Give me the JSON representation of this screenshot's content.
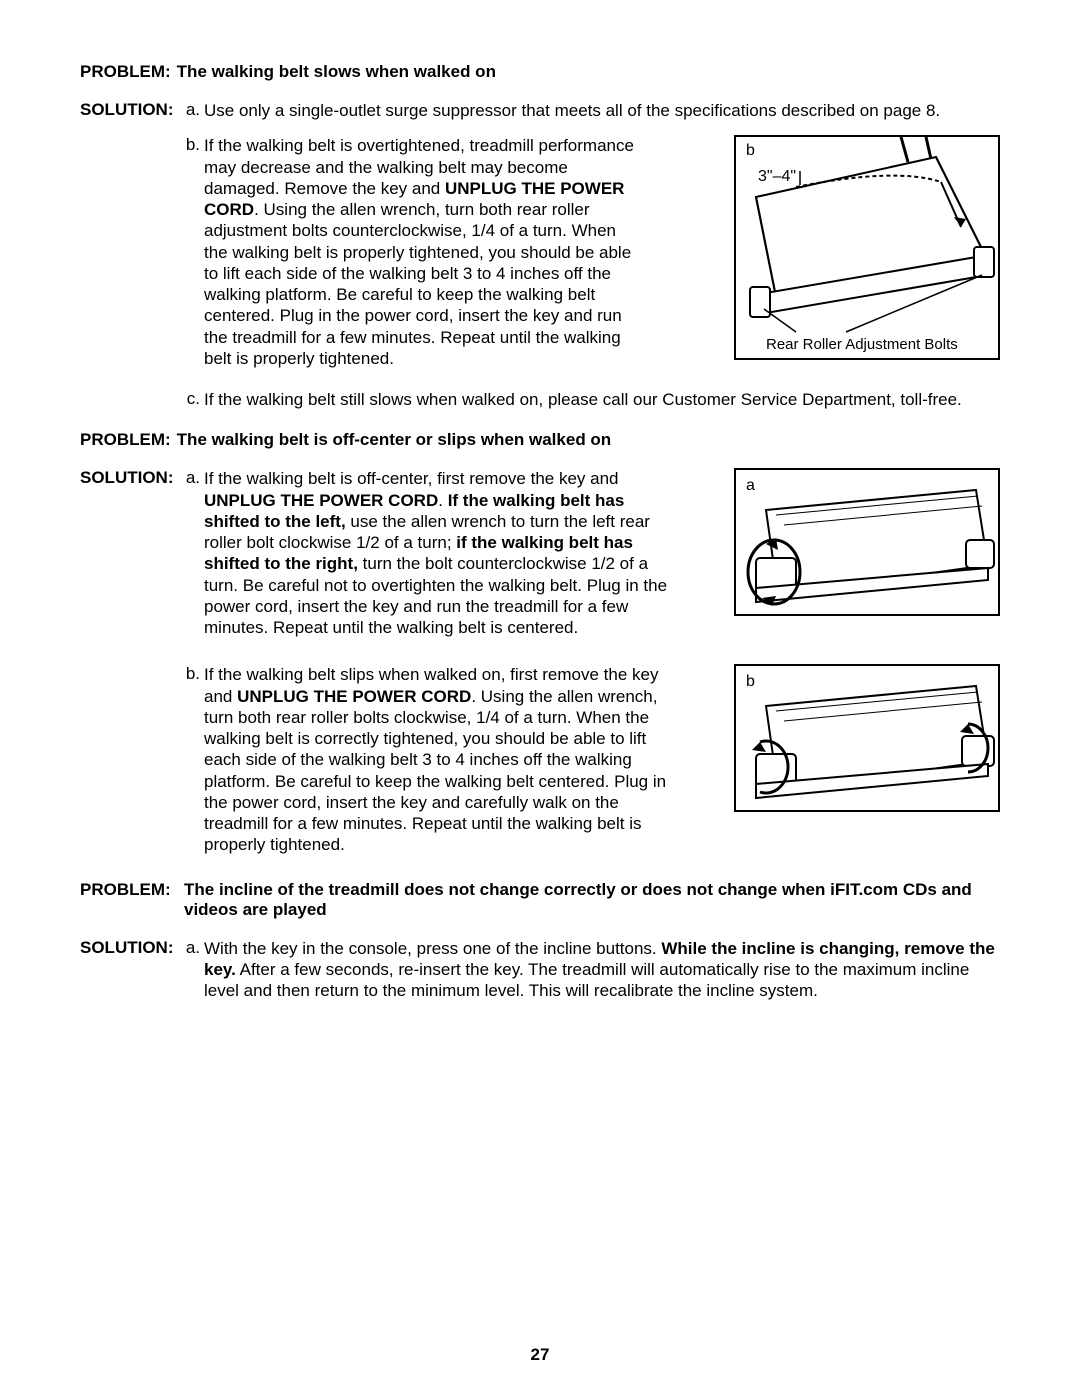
{
  "page_number": "27",
  "problems": [
    {
      "label": "PROBLEM:",
      "text": "The walking belt slows when walked on",
      "solution_label": "SOLUTION:",
      "items": [
        {
          "letter": "a.",
          "html": "Use only a single-outlet surge suppressor that meets all of the specifications described on page 8."
        },
        {
          "letter": "b.",
          "html": "If the walking belt is overtightened, treadmill performance may decrease and the walking belt may become damaged. Remove the key and <b>UNPLUG THE POWER CORD</b>. Using the allen wrench, turn both rear roller adjustment bolts counterclockwise, 1/4 of a turn. When the walking belt is properly tightened, you should be able to lift each side of the walking belt 3 to 4 inches off the walking platform. Be careful to keep the walking belt centered. Plug in the power cord, insert the key and run the treadmill for a few minutes. Repeat until the walking belt is properly tightened."
        },
        {
          "letter": "c.",
          "html": "If the walking belt still slows when walked on, please call our Customer Service Department, toll-free."
        }
      ],
      "figure": {
        "label": "b",
        "dim_label": "3\"–4\"",
        "caption": "Rear Roller Adjustment Bolts"
      }
    },
    {
      "label": "PROBLEM:",
      "text": "The walking belt is off-center or slips when walked on",
      "solution_label": "SOLUTION:",
      "items": [
        {
          "letter": "a.",
          "html": "If the walking belt is off-center, first remove the key and <b>UNPLUG THE POWER CORD</b>. <b>If the walking belt has shifted to the left,</b> use the allen wrench to turn the left rear roller bolt clockwise 1/2 of a turn; <b>if the walking belt has shifted to the right,</b> turn the bolt counterclockwise 1/2 of a turn. Be careful not to overtighten the walking belt. Plug in the power cord, insert the key and run the treadmill for a few minutes. Repeat until the walking belt is centered."
        },
        {
          "letter": "b.",
          "html": "If the walking belt slips when walked on, first remove the key and <b>UNPLUG THE POWER CORD</b>. Using the allen wrench, turn both rear roller bolts clockwise, 1/4 of a turn. When the walking belt is correctly tightened, you should be able to lift each side of the walking belt 3 to 4 inches off the walking platform. Be careful to keep the walking belt centered. Plug in the power cord, insert the key and carefully walk on the treadmill for a few minutes. Repeat until the walking belt is properly tightened."
        }
      ],
      "figure_a": {
        "label": "a"
      },
      "figure_b": {
        "label": "b"
      }
    },
    {
      "label": "PROBLEM:",
      "text": "The incline of the treadmill does not change correctly or does not change when iFIT.com CDs and videos are played",
      "solution_label": "SOLUTION:",
      "items": [
        {
          "letter": "a.",
          "html": "With the key in the console, press one of the incline buttons. <b>While the incline is changing, remove the key.</b> After a few seconds, re-insert the key. The treadmill will automatically rise to the maximum incline level and then return to the minimum level. This will recalibrate the incline system."
        }
      ]
    }
  ]
}
